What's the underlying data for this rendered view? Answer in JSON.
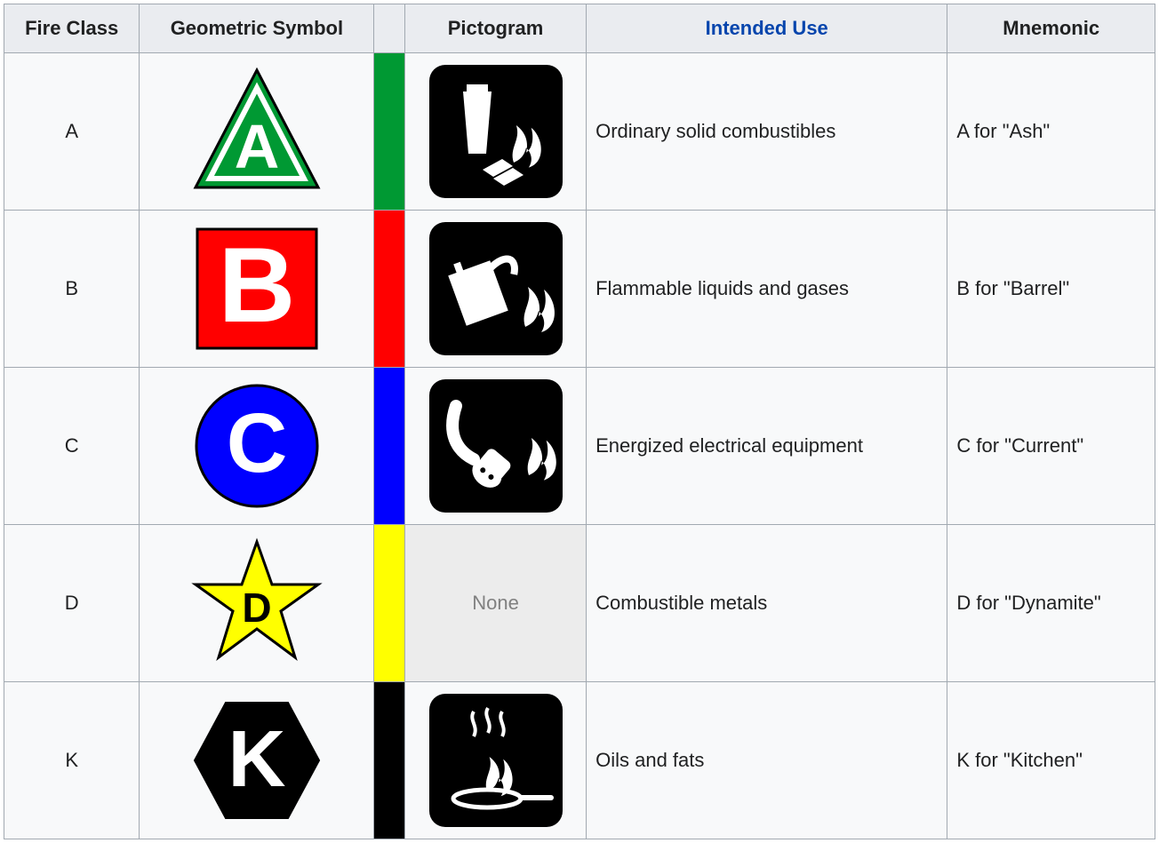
{
  "table": {
    "headers": {
      "fire_class": "Fire Class",
      "geometric_symbol": "Geometric Symbol",
      "color": "",
      "pictogram": "Pictogram",
      "intended_use": "Intended Use",
      "mnemonic": "Mnemonic"
    },
    "header_link_color": "#0645ad",
    "border_color": "#a2a9b1",
    "header_bg": "#eaecf0",
    "none_bg": "#ececec",
    "none_text_color": "#808080",
    "rows": [
      {
        "class": "A",
        "symbol_shape": "triangle",
        "symbol_fill": "#009933",
        "symbol_letter_color": "#ffffff",
        "symbol_border": "#000000",
        "color_swatch": "#009933",
        "pictogram": "trash-fire",
        "pictogram_none": "",
        "intended_use": "Ordinary solid combustibles",
        "mnemonic": "A for \"Ash\""
      },
      {
        "class": "B",
        "symbol_shape": "square",
        "symbol_fill": "#ff0000",
        "symbol_letter_color": "#ffffff",
        "symbol_border": "#000000",
        "color_swatch": "#ff0000",
        "pictogram": "can-fire",
        "pictogram_none": "",
        "intended_use": "Flammable liquids and gases",
        "mnemonic": "B for \"Barrel\""
      },
      {
        "class": "C",
        "symbol_shape": "circle",
        "symbol_fill": "#0000ff",
        "symbol_letter_color": "#ffffff",
        "symbol_border": "#000000",
        "color_swatch": "#0000ff",
        "pictogram": "plug-fire",
        "pictogram_none": "",
        "intended_use": "Energized electrical equipment",
        "mnemonic": "C for \"Current\""
      },
      {
        "class": "D",
        "symbol_shape": "star",
        "symbol_fill": "#ffff00",
        "symbol_letter_color": "#000000",
        "symbol_border": "#000000",
        "color_swatch": "#ffff00",
        "pictogram": "",
        "pictogram_none": "None",
        "intended_use": "Combustible metals",
        "mnemonic": "D for \"Dynamite\""
      },
      {
        "class": "K",
        "symbol_shape": "hexagon",
        "symbol_fill": "#000000",
        "symbol_letter_color": "#ffffff",
        "symbol_border": "#000000",
        "color_swatch": "#000000",
        "pictogram": "pan-fire",
        "pictogram_none": "",
        "intended_use": "Oils and fats",
        "mnemonic": "K for \"Kitchen\""
      }
    ]
  }
}
